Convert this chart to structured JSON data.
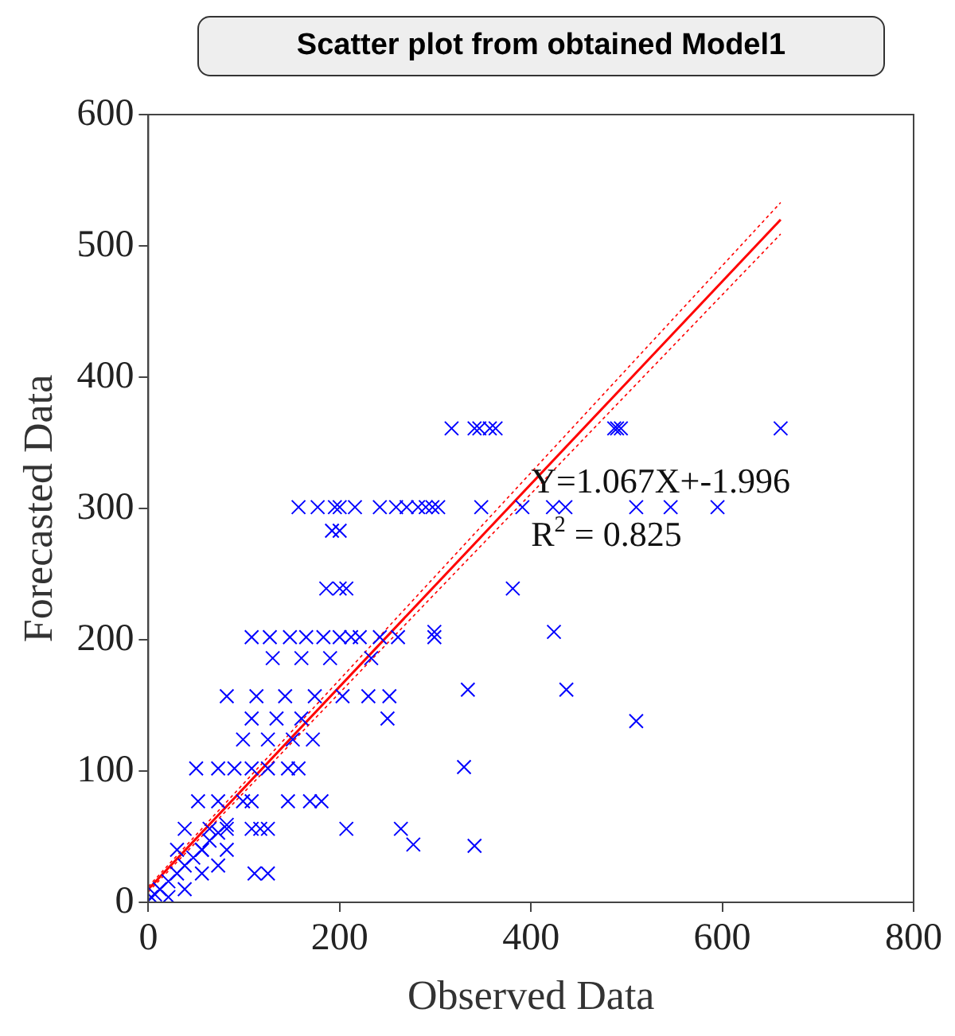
{
  "chart_data": {
    "type": "scatter",
    "title": "Scatter plot from obtained Model1",
    "xlabel": "Observed Data",
    "ylabel": "Forecasted Data",
    "xlim": [
      0,
      800
    ],
    "ylim": [
      0,
      600
    ],
    "xticks": [
      0,
      200,
      400,
      600,
      800
    ],
    "yticks": [
      0,
      100,
      200,
      300,
      400,
      500,
      600
    ],
    "grid": false,
    "legend": false,
    "marker": "cross",
    "annotations": [
      "Y=1.067X+-1.996",
      "R$^{2}$ = 0.825"
    ],
    "series": [
      {
        "color": "#0000ff",
        "x": [
          317,
          341,
          346,
          357,
          363,
          487,
          490,
          494,
          661,
          157,
          177,
          195,
          200,
          216,
          242,
          259,
          270,
          282,
          290,
          297,
          303,
          348,
          391,
          423,
          436,
          510,
          546,
          595,
          192,
          200,
          186,
          200,
          207,
          381,
          299,
          424,
          108,
          127,
          148,
          165,
          183,
          200,
          212,
          221,
          242,
          261,
          299,
          130,
          160,
          190,
          233,
          82,
          113,
          143,
          174,
          203,
          230,
          252,
          108,
          134,
          160,
          250,
          99,
          125,
          151,
          172,
          334,
          437,
          510,
          330,
          341,
          50,
          73,
          90,
          108,
          125,
          146,
          157,
          52,
          73,
          99,
          108,
          146,
          169,
          181,
          38,
          64,
          82,
          108,
          117,
          125,
          207,
          264,
          277,
          30,
          56,
          82,
          111,
          125,
          12,
          21,
          30,
          38,
          47,
          56,
          64,
          73,
          82,
          3,
          7,
          21,
          38,
          56,
          73
        ],
        "values": [
          361,
          361,
          361,
          361,
          361,
          361,
          361,
          361,
          361,
          301,
          301,
          301,
          301,
          301,
          301,
          301,
          301,
          301,
          301,
          301,
          301,
          301,
          301,
          301,
          301,
          301,
          301,
          301,
          283,
          283,
          239,
          239,
          239,
          239,
          206,
          206,
          202,
          202,
          202,
          202,
          202,
          202,
          202,
          202,
          202,
          202,
          202,
          186,
          186,
          186,
          186,
          157,
          157,
          157,
          157,
          157,
          157,
          157,
          140,
          140,
          140,
          140,
          124,
          124,
          124,
          124,
          162,
          162,
          138,
          103,
          43,
          102,
          102,
          102,
          102,
          102,
          102,
          102,
          77,
          77,
          77,
          77,
          77,
          77,
          77,
          56,
          56,
          56,
          56,
          56,
          56,
          56,
          56,
          44,
          40,
          40,
          40,
          22,
          22,
          10,
          16,
          22,
          28,
          34,
          40,
          47,
          53,
          59,
          4,
          6,
          4,
          10,
          22,
          28
        ]
      },
      {
        "type": "line",
        "marker": "none",
        "color": "#ff0000",
        "x": [
          0,
          661
        ],
        "values": [
          10,
          520
        ]
      },
      {
        "type": "line",
        "marker": "none",
        "line_style": "dotted",
        "color": "#ff0000",
        "x": [
          0,
          661
        ],
        "values": [
          8,
          509
        ]
      },
      {
        "type": "line",
        "marker": "none",
        "line_style": "dotted",
        "color": "#ff0000",
        "x": [
          0,
          661
        ],
        "values": [
          12,
          533
        ]
      }
    ]
  }
}
